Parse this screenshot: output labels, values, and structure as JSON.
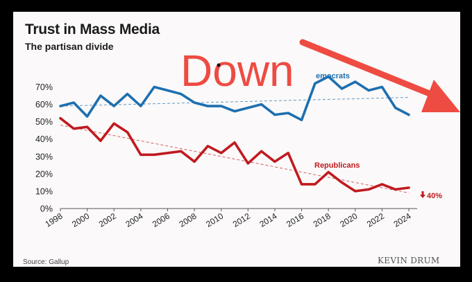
{
  "chart_data": {
    "type": "line",
    "title": "Trust in Mass Media",
    "subtitle": "The partisan divide",
    "x": [
      1998,
      1999,
      2000,
      2001,
      2002,
      2003,
      2004,
      2005,
      2006,
      2007,
      2008,
      2009,
      2010,
      2011,
      2012,
      2013,
      2014,
      2015,
      2016,
      2017,
      2018,
      2019,
      2020,
      2021,
      2022,
      2023,
      2024
    ],
    "x_ticks": [
      "1998",
      "2000",
      "2002",
      "2004",
      "2006",
      "2008",
      "2010",
      "2012",
      "2014",
      "2016",
      "2018",
      "2020",
      "2022",
      "2024"
    ],
    "y_ticks": [
      "0%",
      "10%",
      "20%",
      "30%",
      "40%",
      "50%",
      "60%",
      "70%"
    ],
    "ylim": [
      0,
      75
    ],
    "xlim": [
      1998,
      2024
    ],
    "series": [
      {
        "name": "Democrats",
        "label": "emocrats",
        "color": "#1d6fb0",
        "values": [
          59,
          61,
          53,
          65,
          59,
          66,
          59,
          70,
          68,
          66,
          61,
          59,
          59,
          56,
          58,
          60,
          54,
          55,
          51,
          72,
          76,
          69,
          73,
          68,
          70,
          58,
          54
        ],
        "trend": [
          59,
          64
        ]
      },
      {
        "name": "Republicans",
        "label": "Republicans",
        "color": "#c01a1f",
        "values": [
          52,
          46,
          47,
          39,
          49,
          44,
          31,
          31,
          32,
          33,
          27,
          36,
          32,
          38,
          26,
          33,
          27,
          32,
          14,
          14,
          21,
          15,
          10,
          11,
          14,
          11,
          12
        ],
        "trend": [
          48,
          9
        ]
      }
    ],
    "annotations": {
      "end_label": "40%",
      "end_marker": "arrow-down-icon"
    },
    "source": "Source: Gallup",
    "credit": "KEVIN DRUM",
    "grid": false
  },
  "overlay": {
    "word": "Down",
    "color": "#ee4b42",
    "arrow": "arrow-down-right-icon"
  }
}
